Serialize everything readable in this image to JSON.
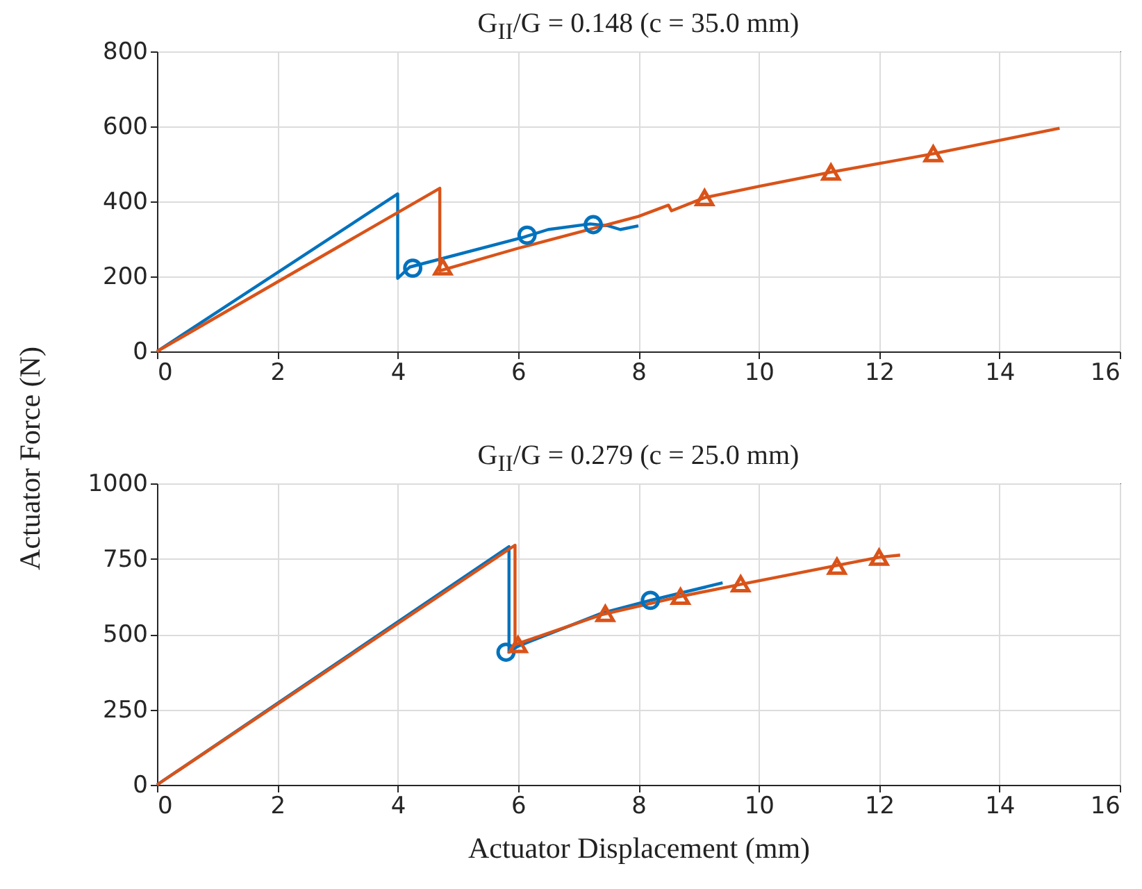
{
  "chart_data": [
    {
      "type": "line",
      "title": "G$_{II}$/G = 0.148 (c = 35.0 mm)",
      "ylabel": "Actuator Force (N)",
      "xlim": [
        0,
        16
      ],
      "xticks": [
        0,
        2,
        4,
        6,
        8,
        10,
        12,
        14,
        16
      ],
      "ylim": [
        0,
        800
      ],
      "yticks": [
        0,
        200,
        400,
        600,
        800
      ],
      "grid": true,
      "line_style": "solid",
      "series": [
        {
          "type": "line",
          "color": "#0072bd",
          "marker": "none",
          "x": [
            0,
            4.0,
            4.0,
            4.2,
            6.1,
            6.5,
            7.2,
            7.5,
            7.7,
            8.0
          ],
          "values": [
            0,
            420,
            195,
            225,
            305,
            325,
            340,
            335,
            325,
            335
          ]
        },
        {
          "type": "line",
          "color": "#d95319",
          "marker": "none",
          "x": [
            0,
            4.7,
            4.7,
            6.0,
            8.0,
            8.5,
            8.55,
            9.1,
            10.0,
            11.2,
            12.9,
            15.0
          ],
          "values": [
            0,
            435,
            215,
            275,
            360,
            390,
            375,
            410,
            440,
            478,
            527,
            595
          ]
        },
        {
          "type": "scatter",
          "color": "#0072bd",
          "marker": "circle",
          "x": [
            4.25,
            6.15,
            7.25
          ],
          "values": [
            222,
            310,
            338
          ]
        },
        {
          "type": "scatter",
          "color": "#d95319",
          "marker": "triangle",
          "x": [
            4.75,
            9.1,
            11.2,
            12.9
          ],
          "values": [
            225,
            410,
            478,
            527
          ]
        }
      ]
    },
    {
      "type": "line",
      "title": "G$_{II}$/G = 0.279 (c = 25.0 mm)",
      "xlabel": "Actuator Displacement (mm)",
      "xlim": [
        0,
        16
      ],
      "xticks": [
        0,
        2,
        4,
        6,
        8,
        10,
        12,
        14,
        16
      ],
      "ylim": [
        0,
        1000
      ],
      "yticks": [
        0,
        250,
        500,
        750,
        1000
      ],
      "grid": true,
      "line_style": "solid",
      "series": [
        {
          "type": "line",
          "color": "#0072bd",
          "marker": "none",
          "x": [
            0,
            5.85,
            5.85,
            6.0,
            7.4,
            8.2,
            9.4
          ],
          "values": [
            0,
            790,
            440,
            460,
            570,
            612,
            670
          ]
        },
        {
          "type": "line",
          "color": "#d95319",
          "marker": "none",
          "x": [
            0,
            5.95,
            5.95,
            7.4,
            8.7,
            9.7,
            11.3,
            12.0,
            12.35
          ],
          "values": [
            0,
            795,
            465,
            565,
            625,
            665,
            728,
            755,
            762
          ]
        },
        {
          "type": "scatter",
          "color": "#0072bd",
          "marker": "circle",
          "x": [
            5.8,
            8.2
          ],
          "values": [
            440,
            612
          ]
        },
        {
          "type": "scatter",
          "color": "#d95319",
          "marker": "triangle",
          "x": [
            6.0,
            7.45,
            8.7,
            9.7,
            11.3,
            12.0
          ],
          "values": [
            465,
            568,
            625,
            667,
            725,
            755
          ]
        }
      ]
    }
  ]
}
